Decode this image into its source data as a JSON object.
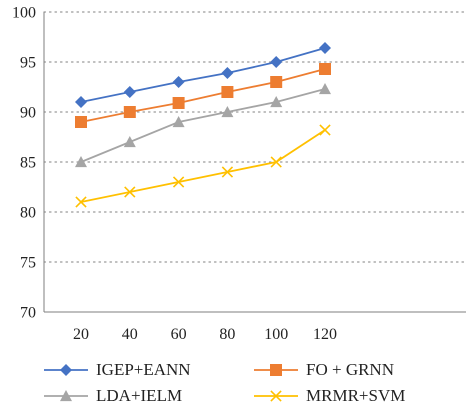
{
  "chart_data": {
    "type": "line",
    "title": "",
    "xlabel": "",
    "ylabel": "",
    "x": [
      20,
      40,
      60,
      80,
      100,
      120
    ],
    "ylim": [
      70,
      100
    ],
    "yticks": [
      70,
      75,
      80,
      85,
      90,
      95,
      100
    ],
    "grid": "horizontal dotted",
    "legend_position": "bottom",
    "series": [
      {
        "name": "IGEP+EANN",
        "values": [
          91,
          92,
          93,
          93.9,
          95,
          96.4
        ],
        "color": "#4472c4",
        "marker": "diamond"
      },
      {
        "name": "FO + GRNN",
        "values": [
          89,
          90,
          90.9,
          92,
          93,
          94.3
        ],
        "color": "#ed7d31",
        "marker": "square"
      },
      {
        "name": "LDA+IELM",
        "values": [
          85,
          87,
          89,
          90,
          91,
          92.3
        ],
        "color": "#a5a5a5",
        "marker": "triangle"
      },
      {
        "name": "MRMR+SVM",
        "values": [
          81,
          82,
          83,
          84,
          85,
          88.2
        ],
        "color": "#ffc000",
        "marker": "x"
      }
    ]
  }
}
